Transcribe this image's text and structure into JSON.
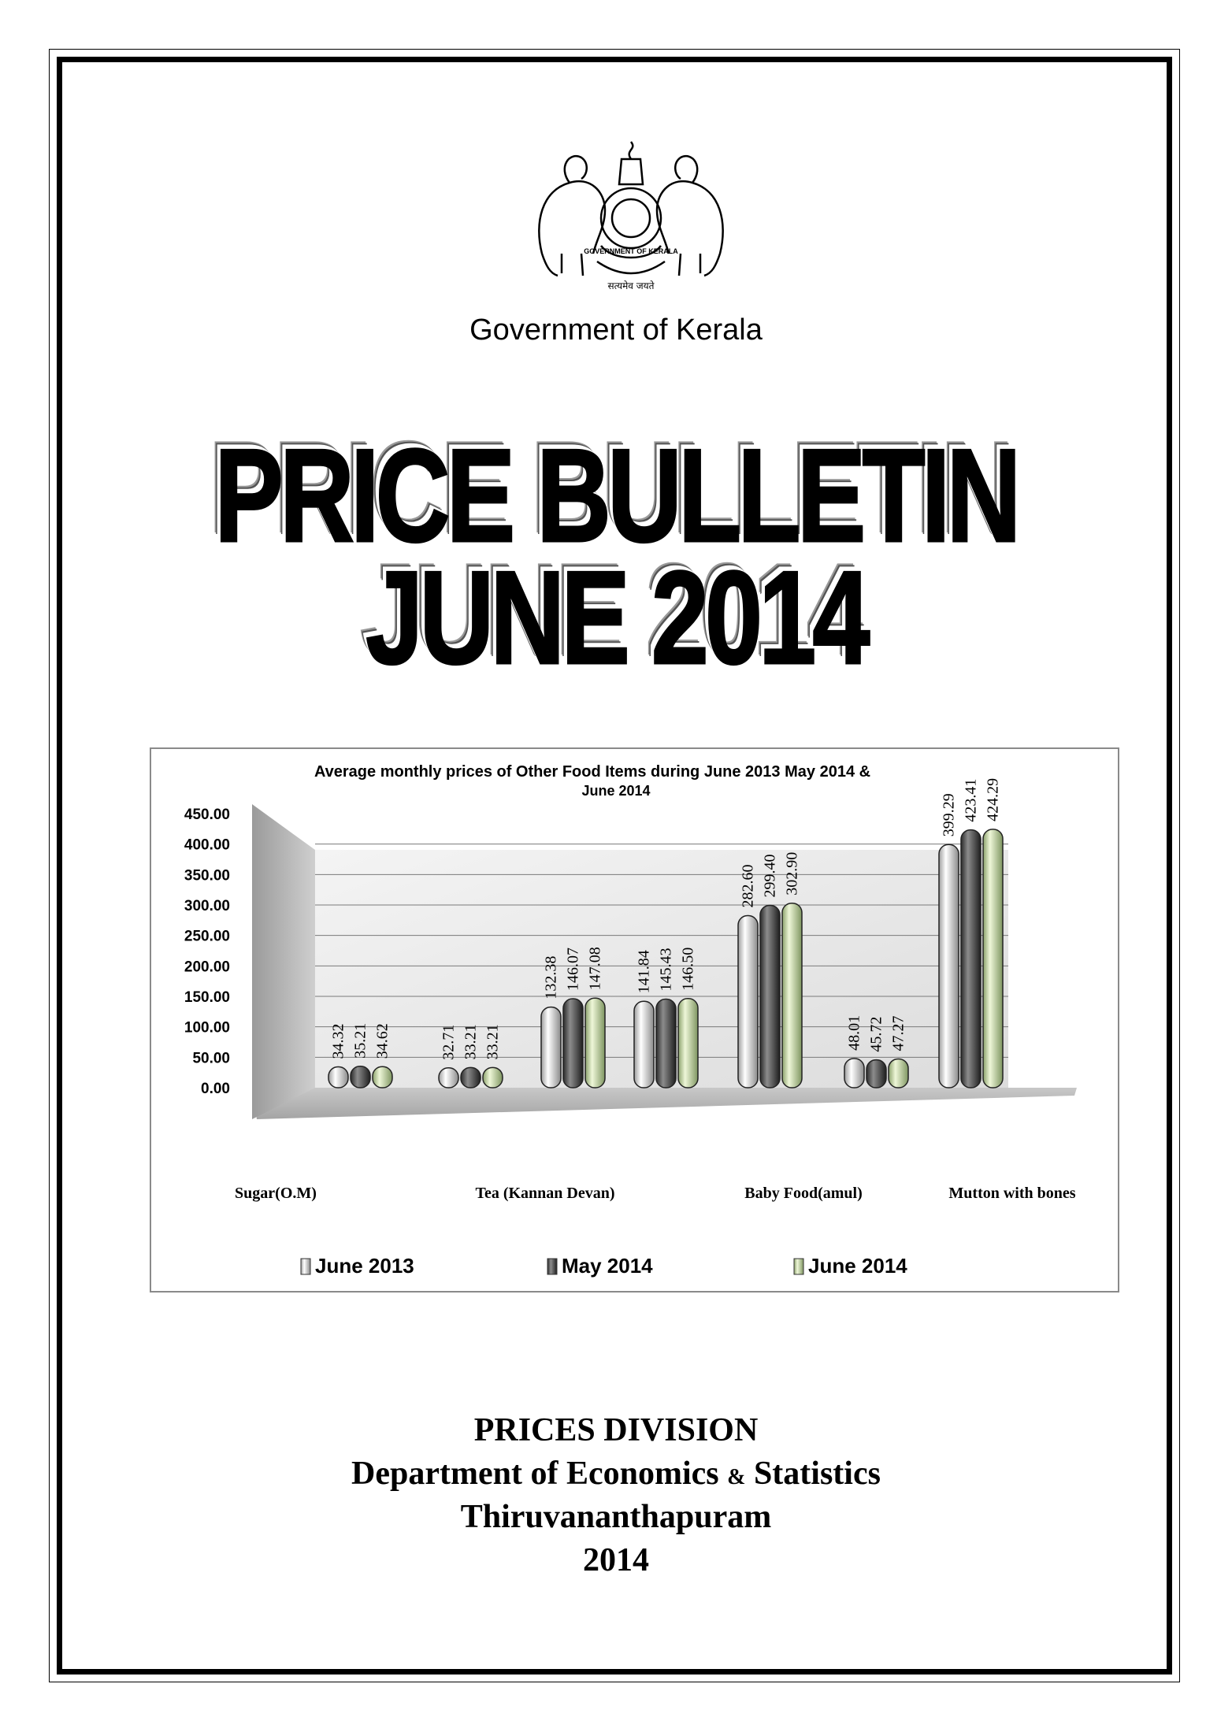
{
  "header": {
    "government": "Government of Kerala",
    "emblem_motto": "सत्यमेव जयते",
    "emblem_ring_text": "GOVERNMENT OF KERALA"
  },
  "title": {
    "line1": "PRICE BULLETIN",
    "line2": "JUNE 2014"
  },
  "chart_data": {
    "type": "bar",
    "title_line1": "Average monthly prices of Other Food Items during  June  2013 May 2014 &",
    "title_line2": "June 2014",
    "categories": [
      "Sugar(O.M)",
      "Tea (Kannan Devan)",
      "Baby Food(amul)",
      "Mutton with  bones"
    ],
    "bar_groups": [
      {
        "values": [
          34.32,
          35.21,
          34.62
        ]
      },
      {
        "values": [
          32.71,
          33.21,
          33.21
        ]
      },
      {
        "values": [
          132.38,
          146.07,
          147.08
        ]
      },
      {
        "values": [
          141.84,
          145.43,
          146.5
        ]
      },
      {
        "values": [
          282.6,
          299.4,
          302.9
        ]
      },
      {
        "values": [
          48.01,
          45.72,
          47.27
        ]
      },
      {
        "values": [
          399.29,
          423.41,
          424.29
        ]
      }
    ],
    "data_labels": [
      [
        "34.32",
        "35.21",
        "34.62"
      ],
      [
        "32.71",
        "33.21",
        "33.21"
      ],
      [
        "132.38",
        "146.07",
        "147.08"
      ],
      [
        "141.84",
        "145.43",
        "146.50"
      ],
      [
        "282.60",
        "299.40",
        "302.90"
      ],
      [
        "48.01",
        "45.72",
        "47.27"
      ],
      [
        "399.29",
        "423.41",
        "424.29"
      ]
    ],
    "series": [
      {
        "name": "June 2013",
        "color": "#e4e4e4"
      },
      {
        "name": "May 2014",
        "color": "#505050"
      },
      {
        "name": "June 2014",
        "color": "#c6dca2"
      }
    ],
    "y_ticks": [
      "450.00",
      "400.00",
      "350.00",
      "300.00",
      "250.00",
      "200.00",
      "150.00",
      "100.00",
      "50.00",
      "0.00"
    ],
    "ylim": [
      0,
      450
    ],
    "grid": true,
    "legend_position": "bottom"
  },
  "footer": {
    "division": "PRICES DIVISION",
    "dept_a": "Department of Economics ",
    "dept_amp": "&",
    "dept_b": " Statistics",
    "city": "Thiruvananthapuram",
    "year": "2014"
  }
}
